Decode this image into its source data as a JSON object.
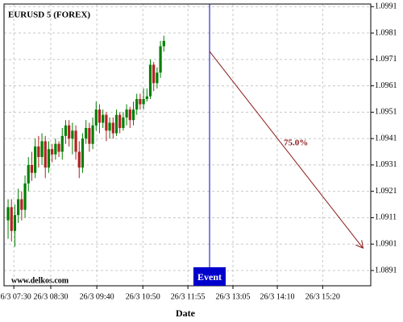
{
  "chart_data": {
    "type": "candlestick",
    "title": "EURUSD 5 (FOREX)",
    "watermark": "www.delkos.com",
    "x_label": "Date",
    "colors": {
      "up": "#008000",
      "down": "#b22222"
    },
    "open": [
      1.091,
      1.0915,
      1.0906,
      1.0912,
      1.0918,
      1.0914,
      1.0924,
      1.0931,
      1.0928,
      1.0938,
      1.0934,
      1.094,
      1.093,
      1.0937,
      1.0935,
      1.0939,
      1.0936,
      1.0942,
      1.0946,
      1.0941,
      1.0944,
      1.0936,
      1.093,
      1.0941,
      1.0945,
      1.0939,
      1.0946,
      1.0952,
      1.0947,
      1.095,
      1.0944,
      1.0947,
      1.0943,
      1.095,
      1.0945,
      1.0949,
      1.0952,
      1.0948,
      1.0952,
      1.0956,
      1.0954,
      1.0956,
      1.0957,
      1.0969,
      1.0962,
      1.0966,
      1.0976
    ],
    "high": [
      1.0918,
      1.0918,
      1.0916,
      1.0922,
      1.0921,
      1.0927,
      1.0934,
      1.0936,
      1.0941,
      1.0942,
      1.0943,
      1.0942,
      1.094,
      1.0939,
      1.0941,
      1.094,
      1.0945,
      1.0948,
      1.0948,
      1.0947,
      1.0946,
      1.094,
      1.0943,
      1.0948,
      1.0947,
      1.0949,
      1.0955,
      1.0954,
      1.0952,
      1.0951,
      1.0949,
      1.0949,
      1.0952,
      1.0951,
      1.0951,
      1.0954,
      1.0953,
      1.0955,
      1.0958,
      1.0958,
      1.096,
      1.096,
      1.0971,
      1.097,
      1.0968,
      1.0978,
      1.098
    ],
    "low": [
      1.0903,
      1.0902,
      1.09,
      1.0909,
      1.091,
      1.0911,
      1.0921,
      1.0925,
      1.0926,
      1.093,
      1.0931,
      1.0926,
      1.0928,
      1.0932,
      1.0933,
      1.0934,
      1.0933,
      1.0939,
      1.0938,
      1.0935,
      1.0933,
      1.0926,
      1.0928,
      1.0939,
      1.0936,
      1.0937,
      1.0944,
      1.0943,
      1.0945,
      1.094,
      1.0941,
      1.0941,
      1.0942,
      1.0943,
      1.0944,
      1.0946,
      1.0945,
      1.0946,
      1.095,
      1.0952,
      1.0952,
      1.0955,
      1.0956,
      1.0959,
      1.096,
      1.0964,
      1.0974
    ],
    "close": [
      1.0915,
      1.0906,
      1.0912,
      1.0918,
      1.0914,
      1.0924,
      1.0931,
      1.0928,
      1.0938,
      1.0934,
      1.094,
      1.093,
      1.0937,
      1.0935,
      1.0939,
      1.0936,
      1.0942,
      1.0946,
      1.0941,
      1.0944,
      1.0936,
      1.093,
      1.0941,
      1.0945,
      1.0939,
      1.0946,
      1.0952,
      1.0947,
      1.095,
      1.0944,
      1.0947,
      1.0943,
      1.095,
      1.0945,
      1.0949,
      1.0952,
      1.0948,
      1.0952,
      1.0956,
      1.0954,
      1.0956,
      1.0957,
      1.0969,
      1.0962,
      1.0966,
      1.0976,
      1.0978
    ],
    "xlim": [
      -1.2,
      107.1
    ],
    "xticks": [
      {
        "value": 1.7,
        "label": "26/3 07:30"
      },
      {
        "value": 12.6,
        "label": "26/3 08:30"
      },
      {
        "value": 26.2,
        "label": "26/3 09:40"
      },
      {
        "value": 39.8,
        "label": "26/3 10:50"
      },
      {
        "value": 53.1,
        "label": "26/3 11:55"
      },
      {
        "value": 66.4,
        "label": "26/3 13:05"
      },
      {
        "value": 79.5,
        "label": "26/3 14:10"
      },
      {
        "value": 92.9,
        "label": "26/3 15:20"
      }
    ],
    "ylim": [
      1.08852,
      1.0992
    ],
    "yticks": [
      1.0891,
      1.0901,
      1.0911,
      1.0921,
      1.0931,
      1.0941,
      1.0951,
      1.0961,
      1.0971,
      1.0981,
      1.0991
    ],
    "grid": true,
    "event": {
      "x": 59.5,
      "label": "Event",
      "color": "#0000cc"
    },
    "arrow": {
      "x": [
        59.5,
        104.8
      ],
      "y": [
        1.0974,
        1.08995
      ],
      "label": "75.0%",
      "color": "#8b1a1a"
    }
  }
}
